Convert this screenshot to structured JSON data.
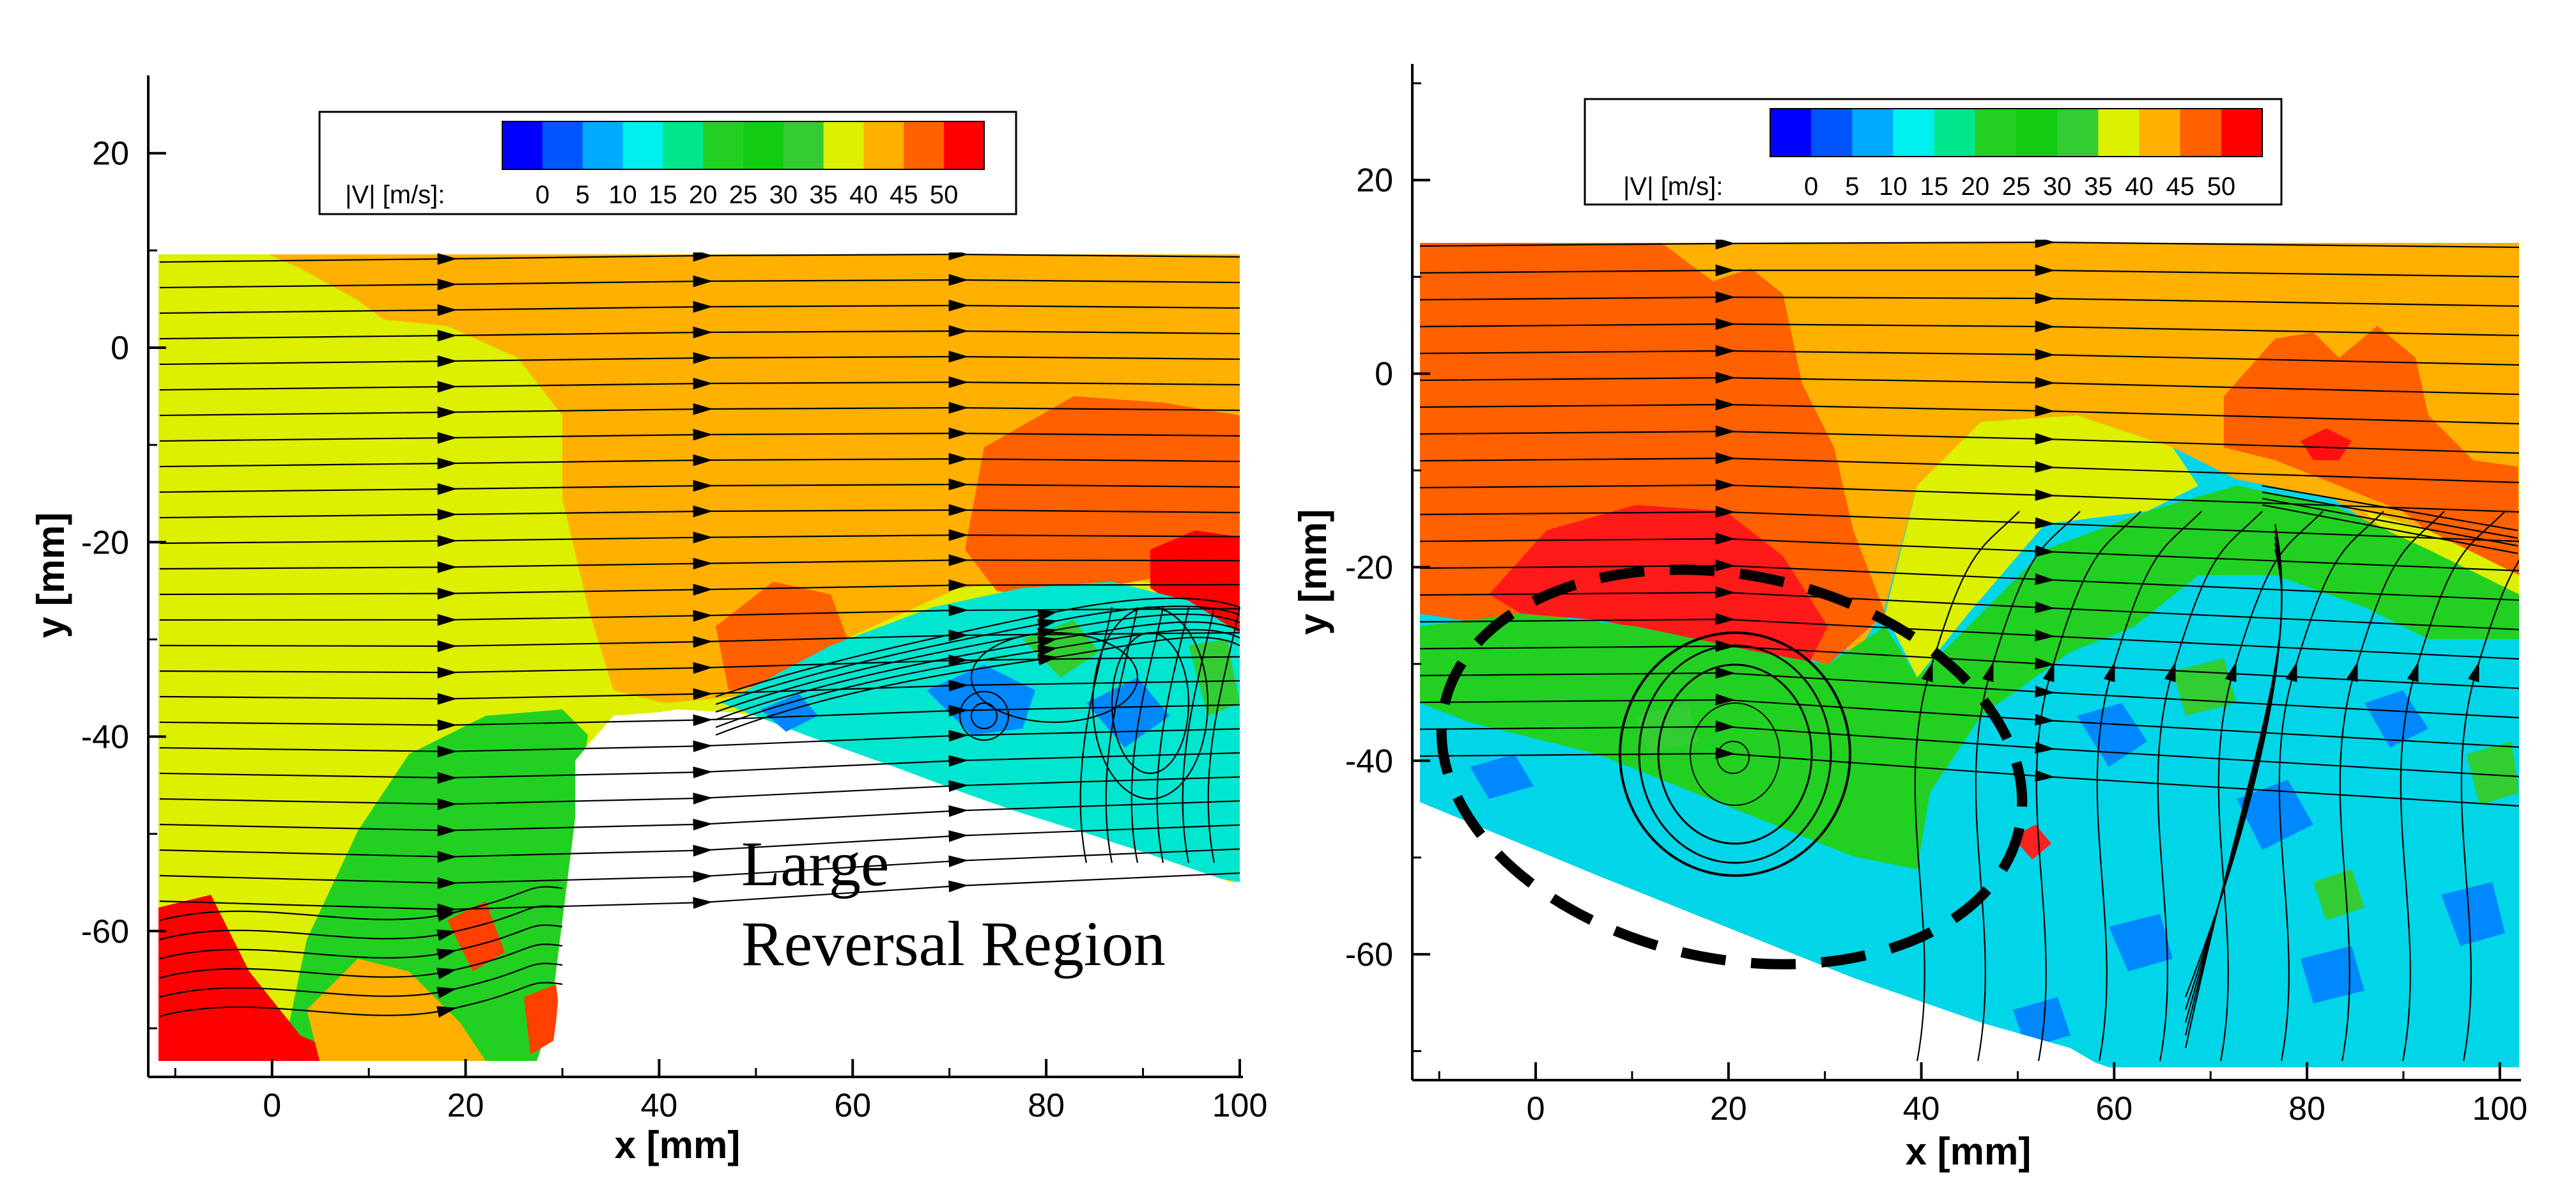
{
  "chart_data": [
    {
      "type": "contour",
      "panel": "left",
      "xlabel": "x [mm]",
      "ylabel": "y [mm]",
      "xlim": [
        -12,
        100
      ],
      "ylim": [
        -75,
        28
      ],
      "xticks": [
        0,
        20,
        40,
        60,
        80,
        100
      ],
      "yticks": [
        20,
        0,
        -20,
        -40,
        -60
      ],
      "colorbar": {
        "label": "|V| [m/s]:",
        "ticks": [
          0,
          5,
          10,
          15,
          20,
          25,
          30,
          35,
          40,
          45,
          50
        ],
        "colors": [
          "#0000ff",
          "#0055ff",
          "#00aaff",
          "#00f0f0",
          "#00e68c",
          "#22d022",
          "#11cc11",
          "#33cc33",
          "#ddf000",
          "#ffb000",
          "#ff6000",
          "#ff0000"
        ]
      },
      "annotation": {
        "line1": "Large",
        "line2": "Reversal Region"
      }
    },
    {
      "type": "contour",
      "panel": "right",
      "xlabel": "x [mm]",
      "ylabel": "y [mm]",
      "xlim": [
        -12,
        102
      ],
      "ylim": [
        -73,
        32
      ],
      "xticks": [
        0,
        20,
        40,
        60,
        80,
        100
      ],
      "yticks": [
        20,
        0,
        -20,
        -40,
        -60
      ],
      "colorbar": {
        "label": "|V| [m/s]:",
        "ticks": [
          0,
          5,
          10,
          15,
          20,
          25,
          30,
          35,
          40,
          45,
          50
        ],
        "colors": [
          "#0000ff",
          "#0055ff",
          "#00aaff",
          "#00f0f0",
          "#00e68c",
          "#22d022",
          "#11cc11",
          "#33cc33",
          "#ddf000",
          "#ffb000",
          "#ff6000",
          "#ff0000"
        ]
      },
      "highlight": "dashed-ellipse-vortex"
    }
  ]
}
